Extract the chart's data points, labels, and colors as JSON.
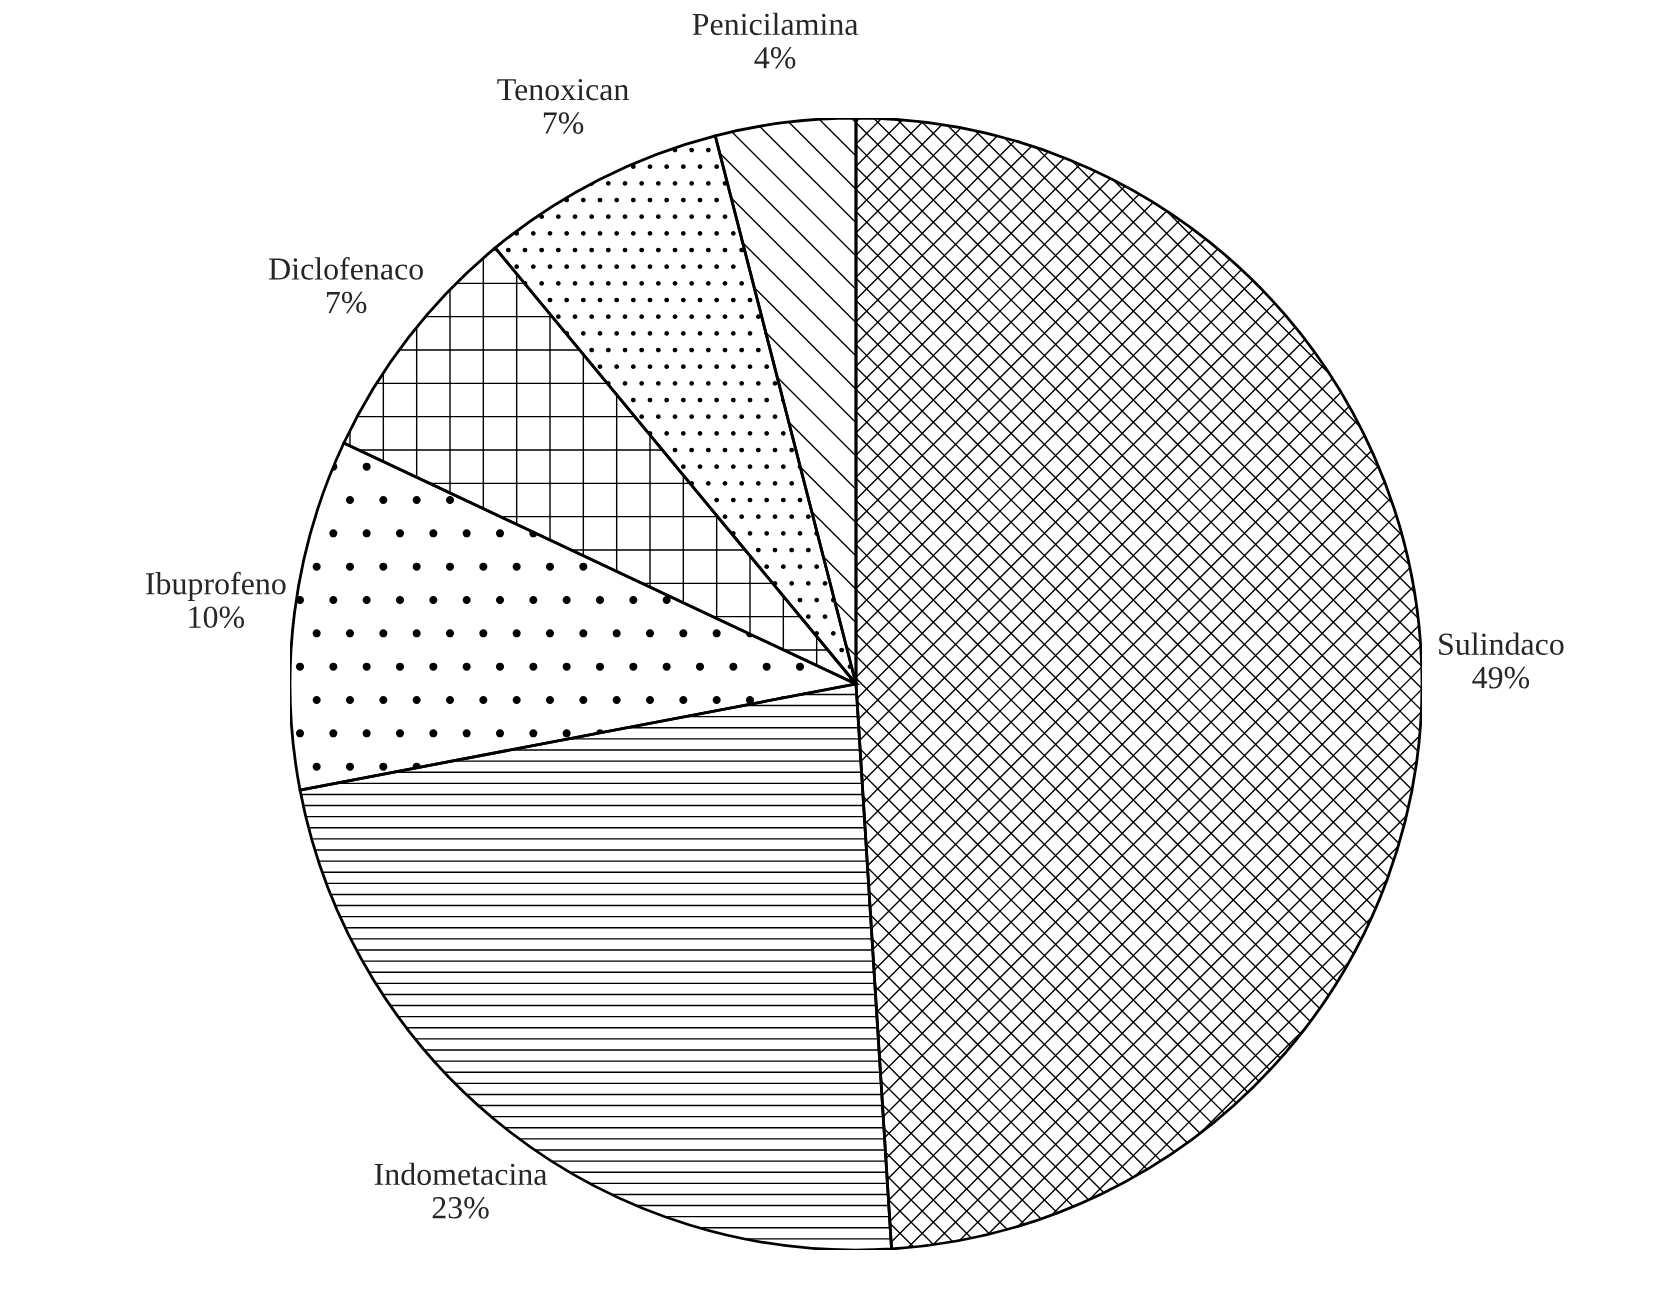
{
  "chart_data": {
    "type": "pie",
    "categories": [
      "Sulindaco",
      "Indometacina",
      "Ibuprofeno",
      "Diclofenaco",
      "Tenoxican",
      "Penicilamina"
    ],
    "values": [
      49,
      23,
      10,
      7,
      7,
      4
    ],
    "value_labels": [
      "49%",
      "23%",
      "10%",
      "7%",
      "7%",
      "4%"
    ],
    "colors": [
      "#ffffff",
      "#ffffff",
      "#ffffff",
      "#ffffff",
      "#ffffff",
      "#ffffff"
    ]
  }
}
